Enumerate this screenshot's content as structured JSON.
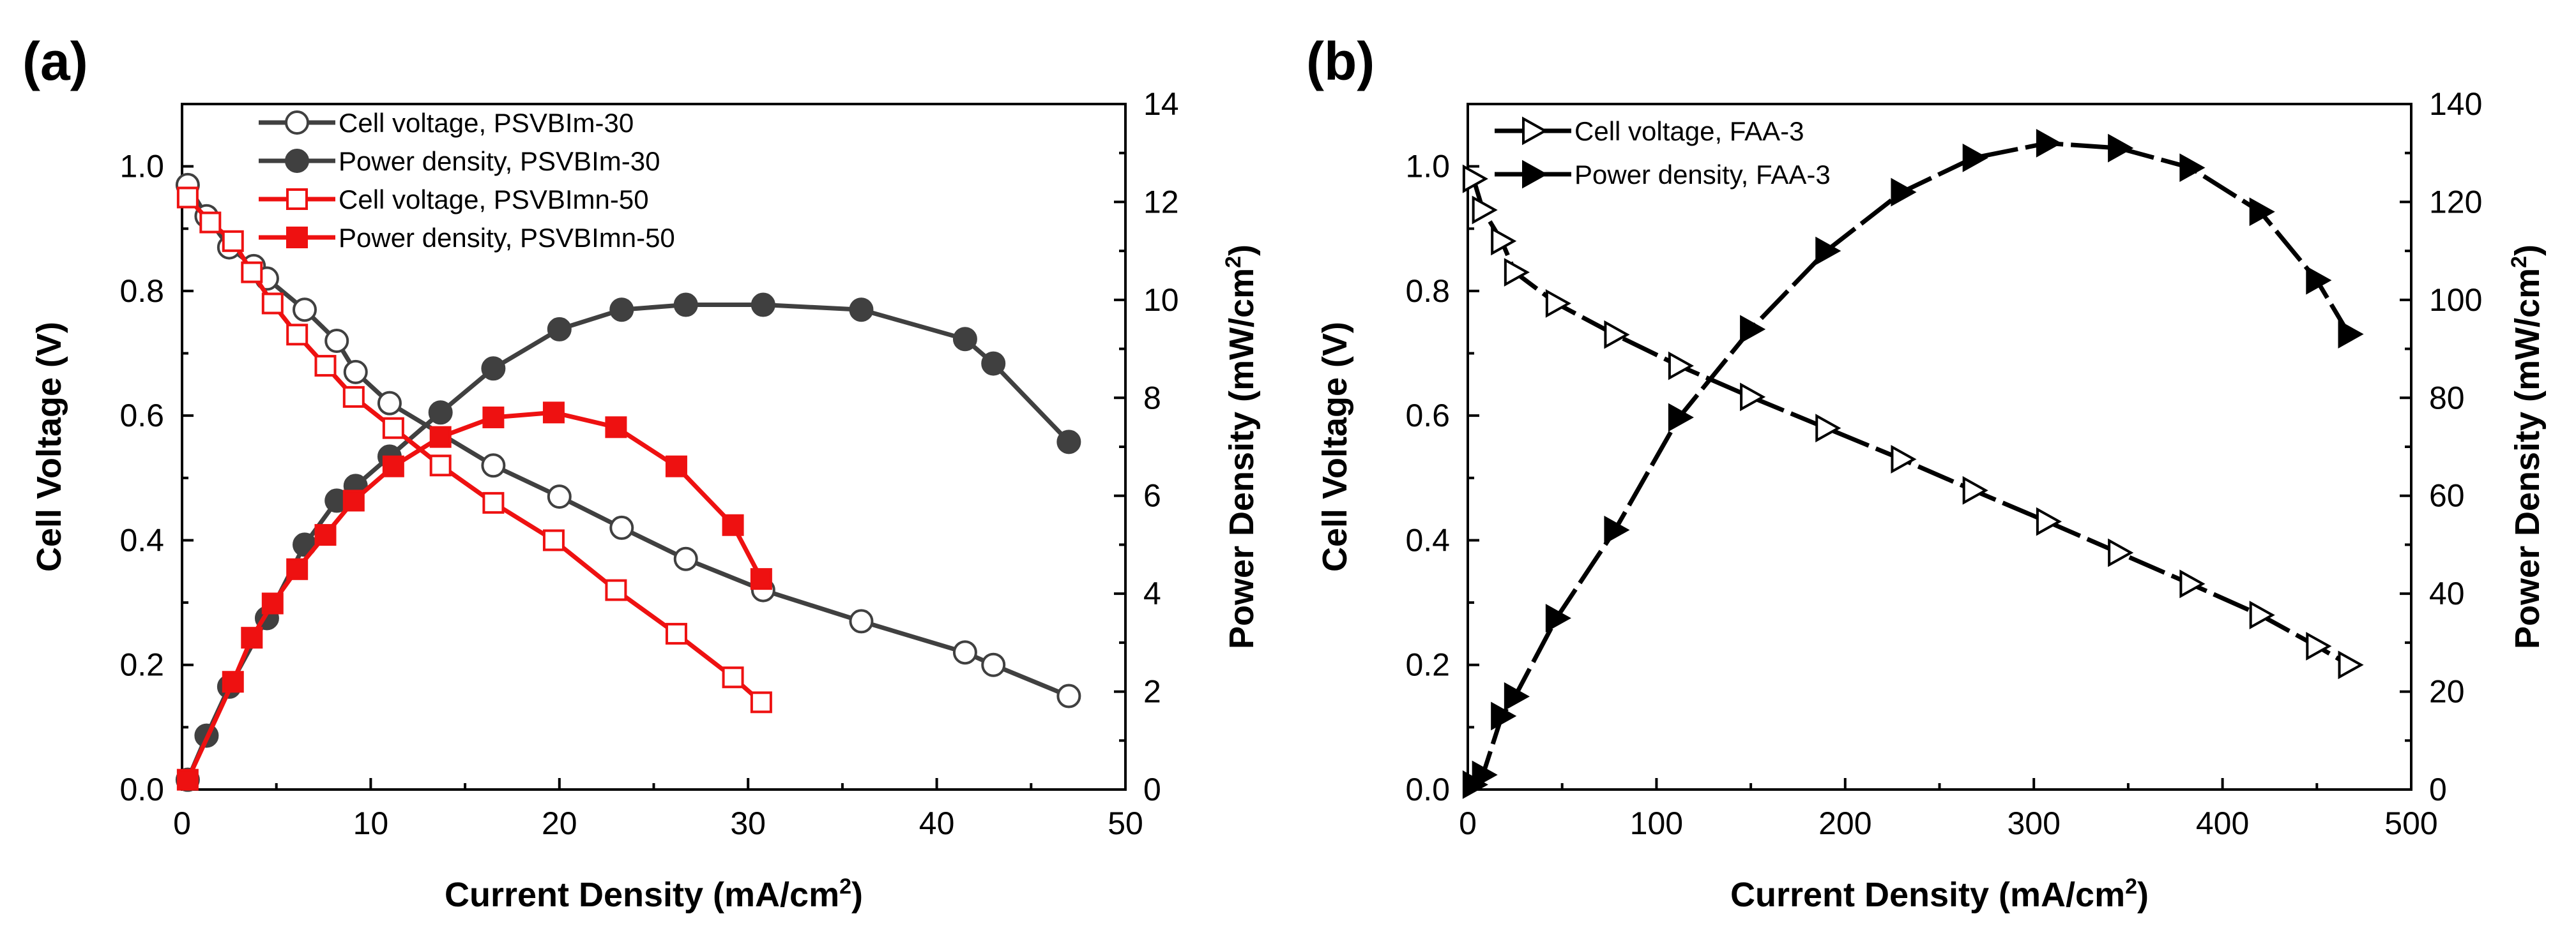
{
  "chart_data": [
    {
      "panel": "(a)",
      "type": "line",
      "xlabel": "Current Density (mA/cm",
      "xlabel_sup": "2",
      "xlabel_end": ")",
      "ylabel_left": "Cell Voltage (V)",
      "ylabel_right": "Power Density (mW/cm",
      "ylabel_right_sup": "2",
      "ylabel_right_end": ")",
      "xlim": [
        0,
        50
      ],
      "ylim_left": [
        0,
        1.1
      ],
      "ylim_right": [
        0,
        14
      ],
      "xticks": [
        "0",
        "10",
        "20",
        "30",
        "40",
        "50"
      ],
      "yticks_left": [
        "0.0",
        "0.2",
        "0.4",
        "0.6",
        "0.8",
        "1.0"
      ],
      "yticks_right": [
        "0",
        "2",
        "4",
        "6",
        "8",
        "10",
        "12",
        "14"
      ],
      "legend_position": "top-left",
      "series": [
        {
          "name": "Cell voltage, PSVBIm-30",
          "axis": "left",
          "color": "#404040",
          "marker": "circle",
          "filled": false,
          "x": [
            0.3,
            1.3,
            2.5,
            3.8,
            4.5,
            6.5,
            8.2,
            9.2,
            11.0,
            16.5,
            20.0,
            23.3,
            26.7,
            30.8,
            36.0,
            41.5,
            43.0,
            47.0
          ],
          "y": [
            0.97,
            0.92,
            0.87,
            0.84,
            0.82,
            0.77,
            0.72,
            0.67,
            0.62,
            0.52,
            0.47,
            0.42,
            0.37,
            0.32,
            0.27,
            0.22,
            0.2,
            0.15
          ]
        },
        {
          "name": "Power density, PSVBIm-30",
          "axis": "right",
          "color": "#404040",
          "marker": "circle",
          "filled": true,
          "x": [
            0.3,
            1.3,
            2.5,
            4.5,
            6.5,
            8.2,
            9.2,
            11.0,
            13.7,
            16.5,
            20.0,
            23.3,
            26.7,
            30.8,
            36.0,
            41.5,
            43.0,
            47.0
          ],
          "y": [
            0.2,
            1.1,
            2.1,
            3.5,
            5.0,
            5.9,
            6.2,
            6.8,
            7.7,
            8.6,
            9.4,
            9.8,
            9.9,
            9.9,
            9.8,
            9.2,
            8.7,
            7.1
          ]
        },
        {
          "name": "Cell voltage, PSVBImn-50",
          "axis": "left",
          "color": "#ee1111",
          "marker": "square",
          "filled": false,
          "x": [
            0.3,
            1.5,
            2.7,
            3.7,
            4.8,
            6.1,
            7.6,
            9.1,
            11.2,
            13.7,
            16.5,
            19.7,
            23.0,
            26.2,
            29.2,
            30.7
          ],
          "y": [
            0.95,
            0.91,
            0.88,
            0.83,
            0.78,
            0.73,
            0.68,
            0.63,
            0.58,
            0.52,
            0.46,
            0.4,
            0.32,
            0.25,
            0.18,
            0.14
          ]
        },
        {
          "name": "Power density, PSVBImn-50",
          "axis": "right",
          "color": "#ee1111",
          "marker": "square",
          "filled": true,
          "x": [
            0.3,
            2.7,
            3.7,
            4.8,
            6.1,
            7.6,
            9.1,
            11.2,
            13.7,
            16.5,
            19.7,
            23.0,
            26.2,
            29.2,
            30.7
          ],
          "y": [
            0.2,
            2.2,
            3.1,
            3.8,
            4.5,
            5.2,
            5.9,
            6.6,
            7.2,
            7.6,
            7.7,
            7.4,
            6.6,
            5.4,
            4.3
          ]
        }
      ]
    },
    {
      "panel": "(b)",
      "type": "line",
      "xlabel": "Current Density (mA/cm",
      "xlabel_sup": "2",
      "xlabel_end": ")",
      "ylabel_left": "Cell Voltage (V)",
      "ylabel_right": "Power Density (mW/cm",
      "ylabel_right_sup": "2",
      "ylabel_right_end": ")",
      "xlim": [
        0,
        500
      ],
      "ylim_left": [
        0,
        1.1
      ],
      "ylim_right": [
        0,
        140
      ],
      "xticks": [
        "0",
        "100",
        "200",
        "300",
        "400",
        "500"
      ],
      "yticks_left": [
        "0.0",
        "0.2",
        "0.4",
        "0.6",
        "0.8",
        "1.0"
      ],
      "yticks_right": [
        "0",
        "20",
        "40",
        "60",
        "80",
        "100",
        "120",
        "140"
      ],
      "legend_position": "top-left",
      "series": [
        {
          "name": "Cell voltage, FAA-3",
          "axis": "left",
          "color": "#000000",
          "marker": "triangle-right",
          "filled": false,
          "x": [
            3,
            8,
            18,
            25,
            47,
            78,
            112,
            150,
            190,
            230,
            268,
            307,
            345,
            383,
            420,
            450,
            467
          ],
          "y": [
            0.98,
            0.93,
            0.88,
            0.83,
            0.78,
            0.73,
            0.68,
            0.63,
            0.58,
            0.53,
            0.48,
            0.43,
            0.38,
            0.33,
            0.28,
            0.23,
            0.2
          ]
        },
        {
          "name": "Power density, FAA-3",
          "axis": "right",
          "color": "#000000",
          "marker": "triangle-right",
          "filled": true,
          "x": [
            3,
            8,
            18,
            25,
            47,
            78,
            112,
            150,
            190,
            230,
            268,
            307,
            345,
            383,
            420,
            450,
            467
          ],
          "y": [
            1,
            3,
            15,
            19,
            35,
            53,
            76,
            94,
            110,
            122,
            129,
            132,
            131,
            127,
            118,
            104,
            93
          ]
        }
      ]
    }
  ]
}
